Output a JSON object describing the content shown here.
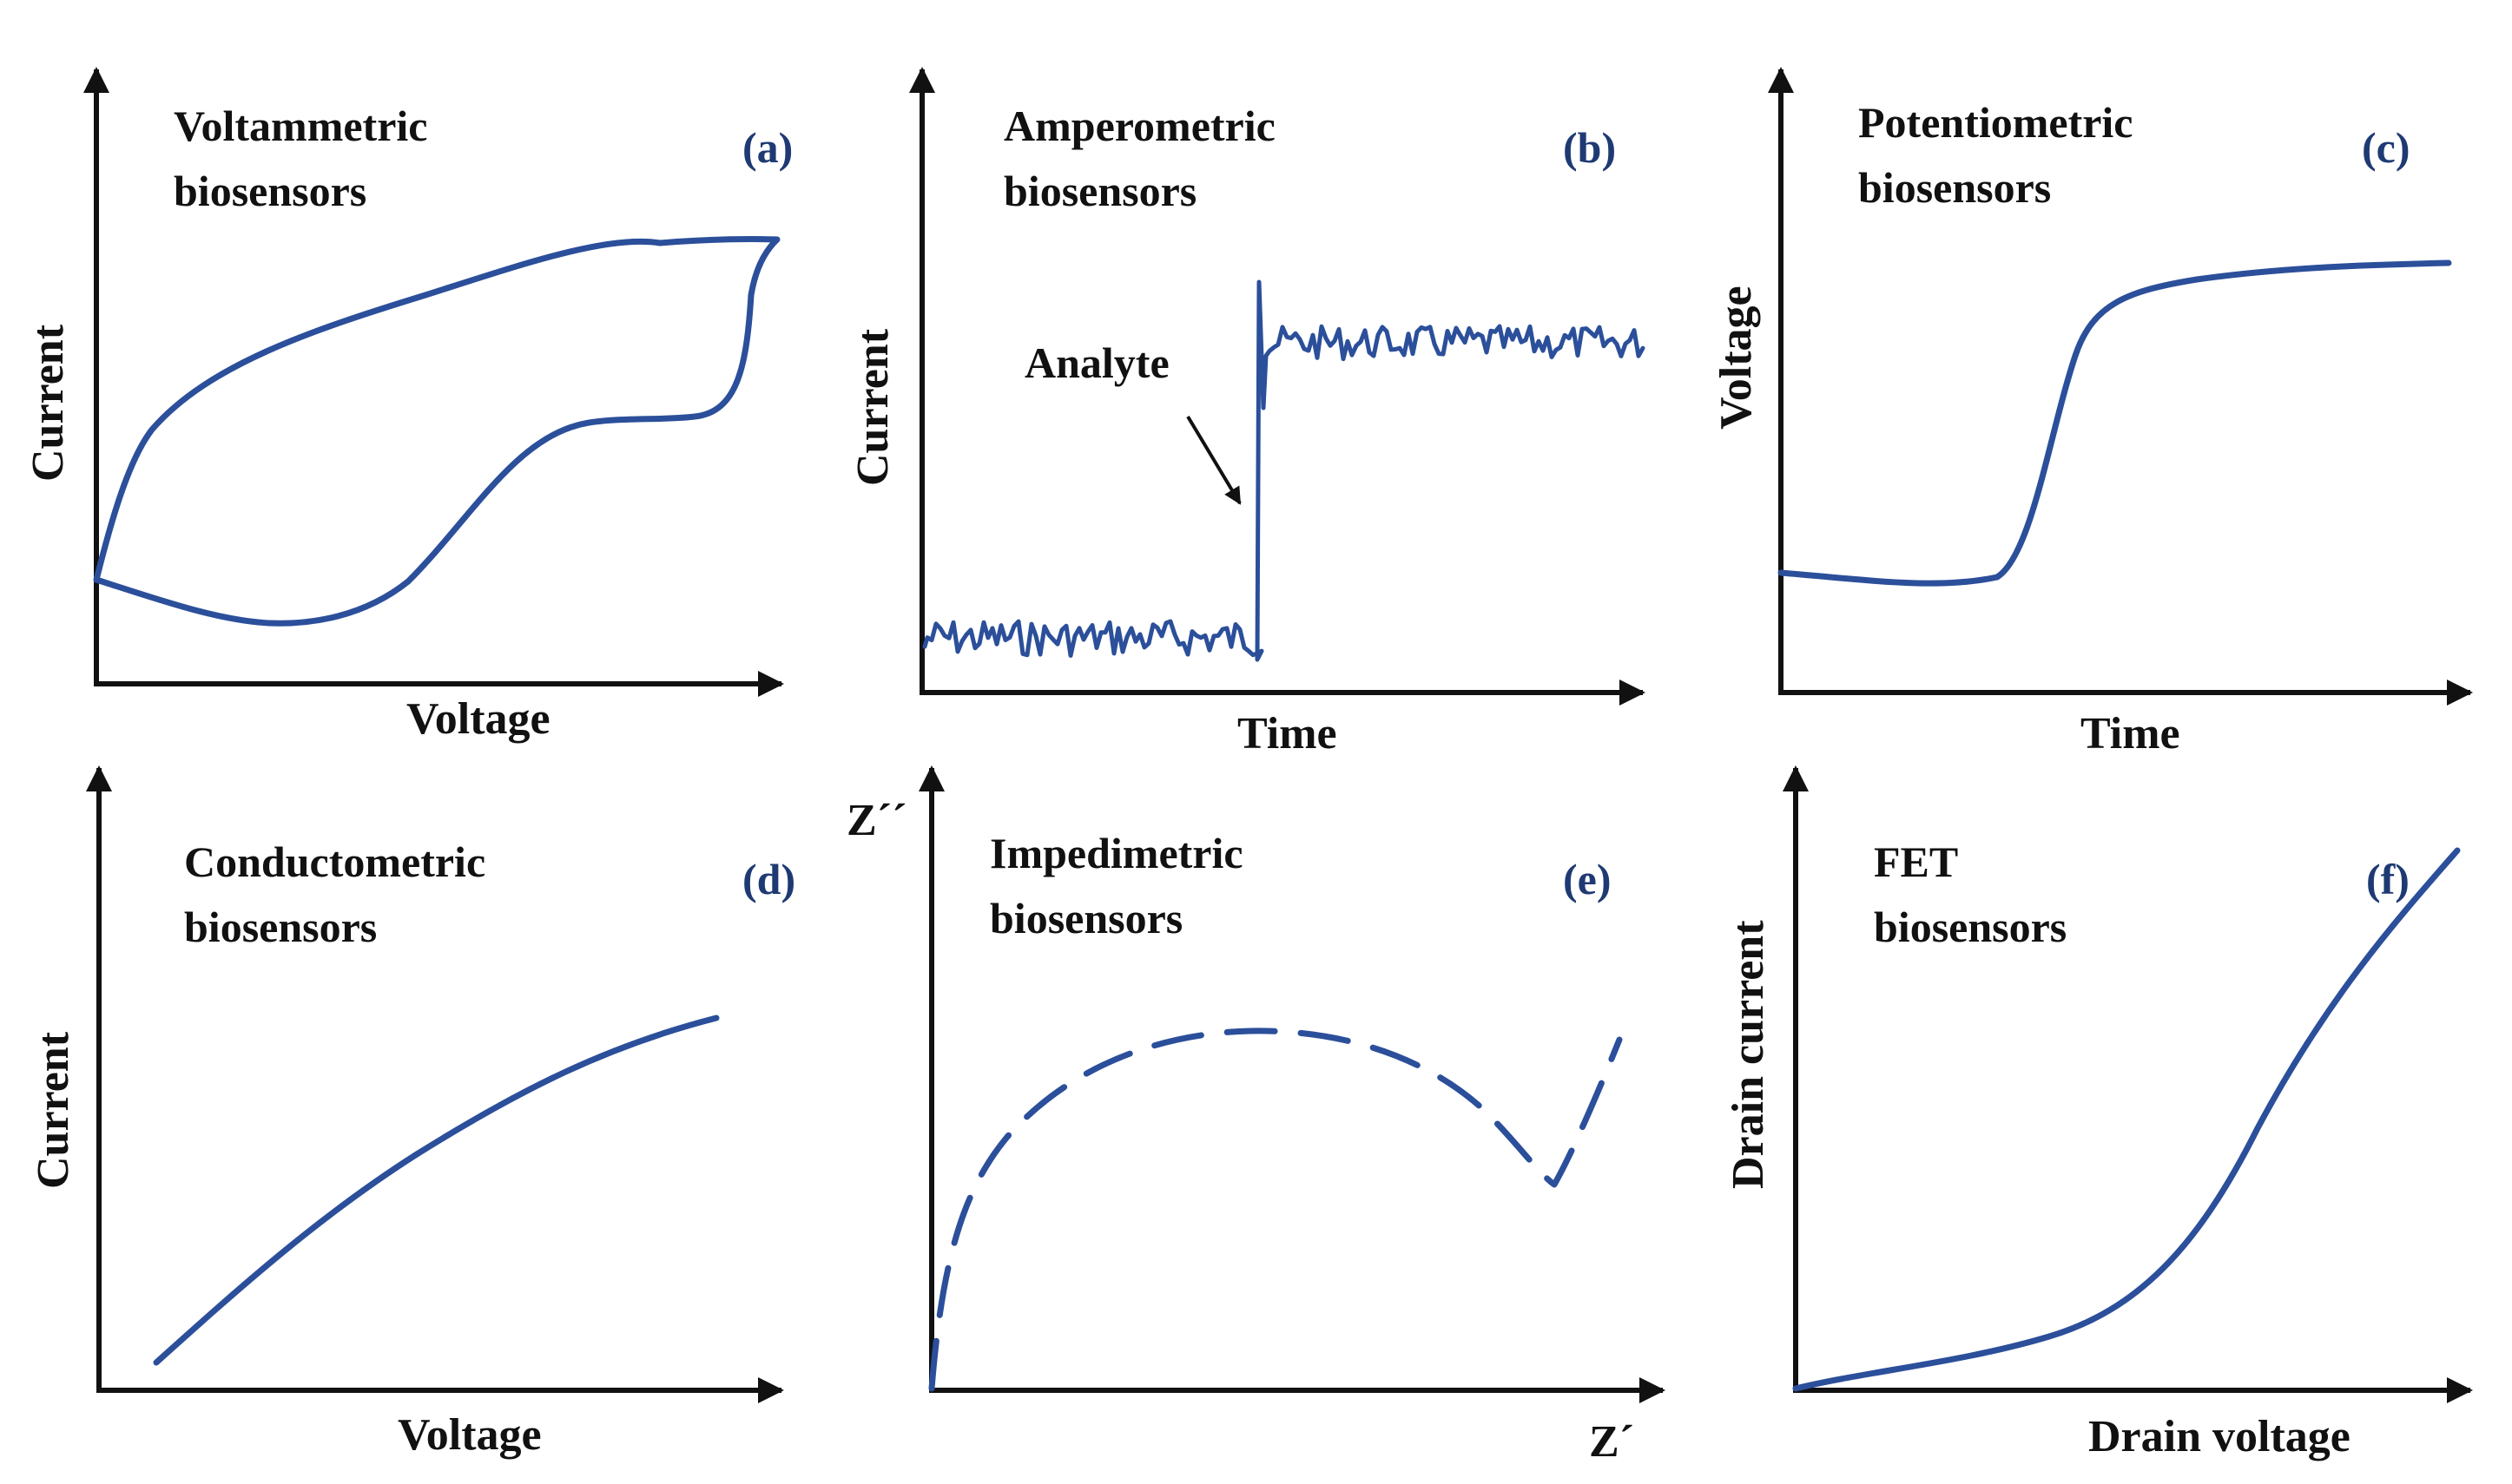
{
  "colors": {
    "curve": "#2b4f9a",
    "axis": "#111111",
    "letter": "#1f3a73"
  },
  "panels": {
    "a": {
      "title_line1": "Voltammetric",
      "title_line2": "biosensors",
      "letter": "(a)",
      "xlabel": "Voltage",
      "ylabel": "Current"
    },
    "b": {
      "title_line1": "Amperometric",
      "title_line2": "biosensors",
      "letter": "(b)",
      "xlabel": "Time",
      "ylabel": "Current",
      "annotation": "Analyte"
    },
    "c": {
      "title_line1": "Potentiometric",
      "title_line2": "biosensors",
      "letter": "(c)",
      "xlabel": "Time",
      "ylabel": "Voltage"
    },
    "d": {
      "title_line1": "Conductometric",
      "title_line2": "biosensors",
      "letter": "(d)",
      "xlabel": "Voltage",
      "ylabel": "Current"
    },
    "e": {
      "title_line1": "Impedimetric",
      "title_line2": "biosensors",
      "letter": "(e)",
      "xlabel": "Z´",
      "ylabel": "Z´´"
    },
    "f": {
      "title_line1": "FET",
      "title_line2": "biosensors",
      "letter": "(f)",
      "xlabel": "Drain voltage",
      "ylabel": "Drain current"
    }
  }
}
